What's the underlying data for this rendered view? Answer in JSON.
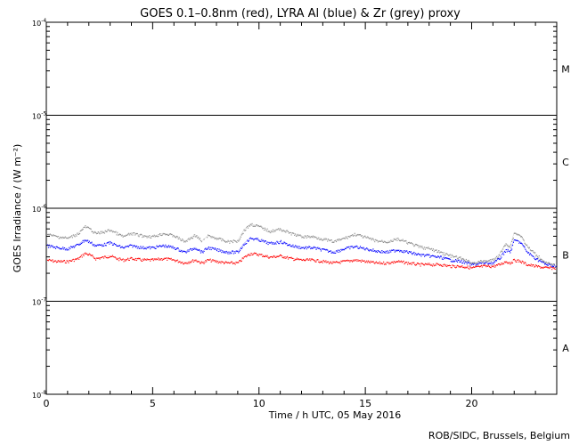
{
  "chart_data": {
    "type": "scatter",
    "title": "GOES 0.1–0.8nm (red), LYRA Al (blue) & Zr (grey) proxy",
    "xlabel": "Time / h UTC, 05 May 2016",
    "ylabel": "GOES Irradiance / (W m⁻²)",
    "xlim": [
      0,
      24
    ],
    "ylim_log10": [
      -8,
      -4
    ],
    "xticks": [
      0,
      5,
      10,
      15,
      20
    ],
    "yticks": [
      {
        "mantissa": "10",
        "exp": "-8"
      },
      {
        "mantissa": "10",
        "exp": "-7"
      },
      {
        "mantissa": "10",
        "exp": "-6"
      },
      {
        "mantissa": "10",
        "exp": "-5"
      },
      {
        "mantissa": "10",
        "exp": "-4"
      }
    ],
    "flare_classes": [
      "A",
      "B",
      "C",
      "M"
    ],
    "grid": "horizontal lines at 1e-7, 1e-6, 1e-5",
    "series_colors": {
      "red": "#ff0000",
      "blue": "#0000ff",
      "grey": "#8c8c8c"
    },
    "series": [
      {
        "color": "red",
        "x": [
          0,
          0.5,
          1,
          1.5,
          1.8,
          2,
          2.3,
          2.7,
          3,
          3.3,
          3.6,
          4,
          4.5,
          5,
          5.5,
          6,
          6.5,
          7,
          7.3,
          7.6,
          8,
          8.5,
          9,
          9.3,
          9.6,
          10,
          10.5,
          11,
          11.5,
          12,
          12.5,
          13,
          13.5,
          14,
          14.5,
          15,
          15.5,
          16,
          16.5,
          17,
          17.5,
          18,
          18.5,
          19,
          19.5,
          20,
          20.5,
          21,
          21.3,
          21.6,
          21.8,
          22,
          22.3,
          22.6,
          23,
          23.5,
          24
        ],
        "y": [
          2.8e-07,
          2.7e-07,
          2.7e-07,
          2.9e-07,
          3.3e-07,
          3.2e-07,
          2.9e-07,
          3e-07,
          3.1e-07,
          2.9e-07,
          2.8e-07,
          2.9e-07,
          2.8e-07,
          2.8e-07,
          2.9e-07,
          2.8e-07,
          2.6e-07,
          2.8e-07,
          2.6e-07,
          2.8e-07,
          2.7e-07,
          2.6e-07,
          2.6e-07,
          3e-07,
          3.3e-07,
          3.2e-07,
          3e-07,
          3.1e-07,
          2.9e-07,
          2.8e-07,
          2.8e-07,
          2.7e-07,
          2.6e-07,
          2.7e-07,
          2.8e-07,
          2.7e-07,
          2.6e-07,
          2.6e-07,
          2.7e-07,
          2.6e-07,
          2.5e-07,
          2.5e-07,
          2.5e-07,
          2.4e-07,
          2.4e-07,
          2.3e-07,
          2.4e-07,
          2.4e-07,
          2.5e-07,
          2.7e-07,
          2.6e-07,
          2.8e-07,
          2.7e-07,
          2.5e-07,
          2.4e-07,
          2.3e-07,
          2.3e-07
        ]
      },
      {
        "color": "blue",
        "x": [
          0,
          0.5,
          1,
          1.5,
          1.8,
          2,
          2.3,
          2.7,
          3,
          3.3,
          3.6,
          4,
          4.5,
          5,
          5.5,
          6,
          6.5,
          7,
          7.3,
          7.6,
          8,
          8.5,
          9,
          9.3,
          9.6,
          10,
          10.5,
          11,
          11.5,
          12,
          12.5,
          13,
          13.5,
          14,
          14.5,
          15,
          15.5,
          16,
          16.5,
          17,
          17.5,
          18,
          18.5,
          19,
          19.5,
          20,
          20.5,
          21,
          21.3,
          21.6,
          21.8,
          22,
          22.3,
          22.6,
          23,
          23.5,
          24
        ],
        "y": [
          4e-07,
          3.8e-07,
          3.7e-07,
          4.1e-07,
          4.6e-07,
          4.4e-07,
          4e-07,
          4.1e-07,
          4.3e-07,
          4e-07,
          3.8e-07,
          4e-07,
          3.8e-07,
          3.8e-07,
          4e-07,
          3.8e-07,
          3.4e-07,
          3.8e-07,
          3.4e-07,
          3.8e-07,
          3.6e-07,
          3.4e-07,
          3.4e-07,
          4.2e-07,
          4.8e-07,
          4.6e-07,
          4.2e-07,
          4.4e-07,
          4e-07,
          3.8e-07,
          3.8e-07,
          3.6e-07,
          3.4e-07,
          3.7e-07,
          3.9e-07,
          3.7e-07,
          3.5e-07,
          3.4e-07,
          3.6e-07,
          3.4e-07,
          3.2e-07,
          3.1e-07,
          3e-07,
          2.8e-07,
          2.7e-07,
          2.5e-07,
          2.6e-07,
          2.6e-07,
          2.9e-07,
          3.6e-07,
          3.4e-07,
          4.6e-07,
          4.3e-07,
          3.4e-07,
          2.9e-07,
          2.5e-07,
          2.4e-07
        ]
      },
      {
        "color": "grey",
        "x": [
          0,
          0.5,
          1,
          1.5,
          1.8,
          2,
          2.3,
          2.7,
          3,
          3.3,
          3.6,
          4,
          4.5,
          5,
          5.5,
          6,
          6.5,
          7,
          7.3,
          7.6,
          8,
          8.5,
          9,
          9.3,
          9.6,
          10,
          10.5,
          11,
          11.5,
          12,
          12.5,
          13,
          13.5,
          14,
          14.5,
          15,
          15.5,
          16,
          16.5,
          17,
          17.5,
          18,
          18.5,
          19,
          19.5,
          20,
          20.5,
          21,
          21.3,
          21.6,
          21.8,
          22,
          22.3,
          22.6,
          23,
          23.5,
          24
        ],
        "y": [
          5.3e-07,
          5e-07,
          4.8e-07,
          5.4e-07,
          6.4e-07,
          6.1e-07,
          5.4e-07,
          5.6e-07,
          5.9e-07,
          5.4e-07,
          5e-07,
          5.4e-07,
          5.1e-07,
          5e-07,
          5.4e-07,
          5.1e-07,
          4.4e-07,
          5.2e-07,
          4.4e-07,
          5.1e-07,
          4.8e-07,
          4.4e-07,
          4.5e-07,
          5.9e-07,
          6.8e-07,
          6.4e-07,
          5.7e-07,
          6e-07,
          5.4e-07,
          5e-07,
          5e-07,
          4.7e-07,
          4.4e-07,
          4.8e-07,
          5.3e-07,
          4.9e-07,
          4.5e-07,
          4.4e-07,
          4.7e-07,
          4.3e-07,
          3.9e-07,
          3.7e-07,
          3.4e-07,
          3.1e-07,
          2.9e-07,
          2.6e-07,
          2.7e-07,
          2.8e-07,
          3.2e-07,
          4.2e-07,
          3.9e-07,
          5.5e-07,
          5.1e-07,
          3.9e-07,
          3.2e-07,
          2.6e-07,
          2.4e-07
        ]
      }
    ]
  },
  "credit": "ROB/SIDC, Brussels, Belgium"
}
